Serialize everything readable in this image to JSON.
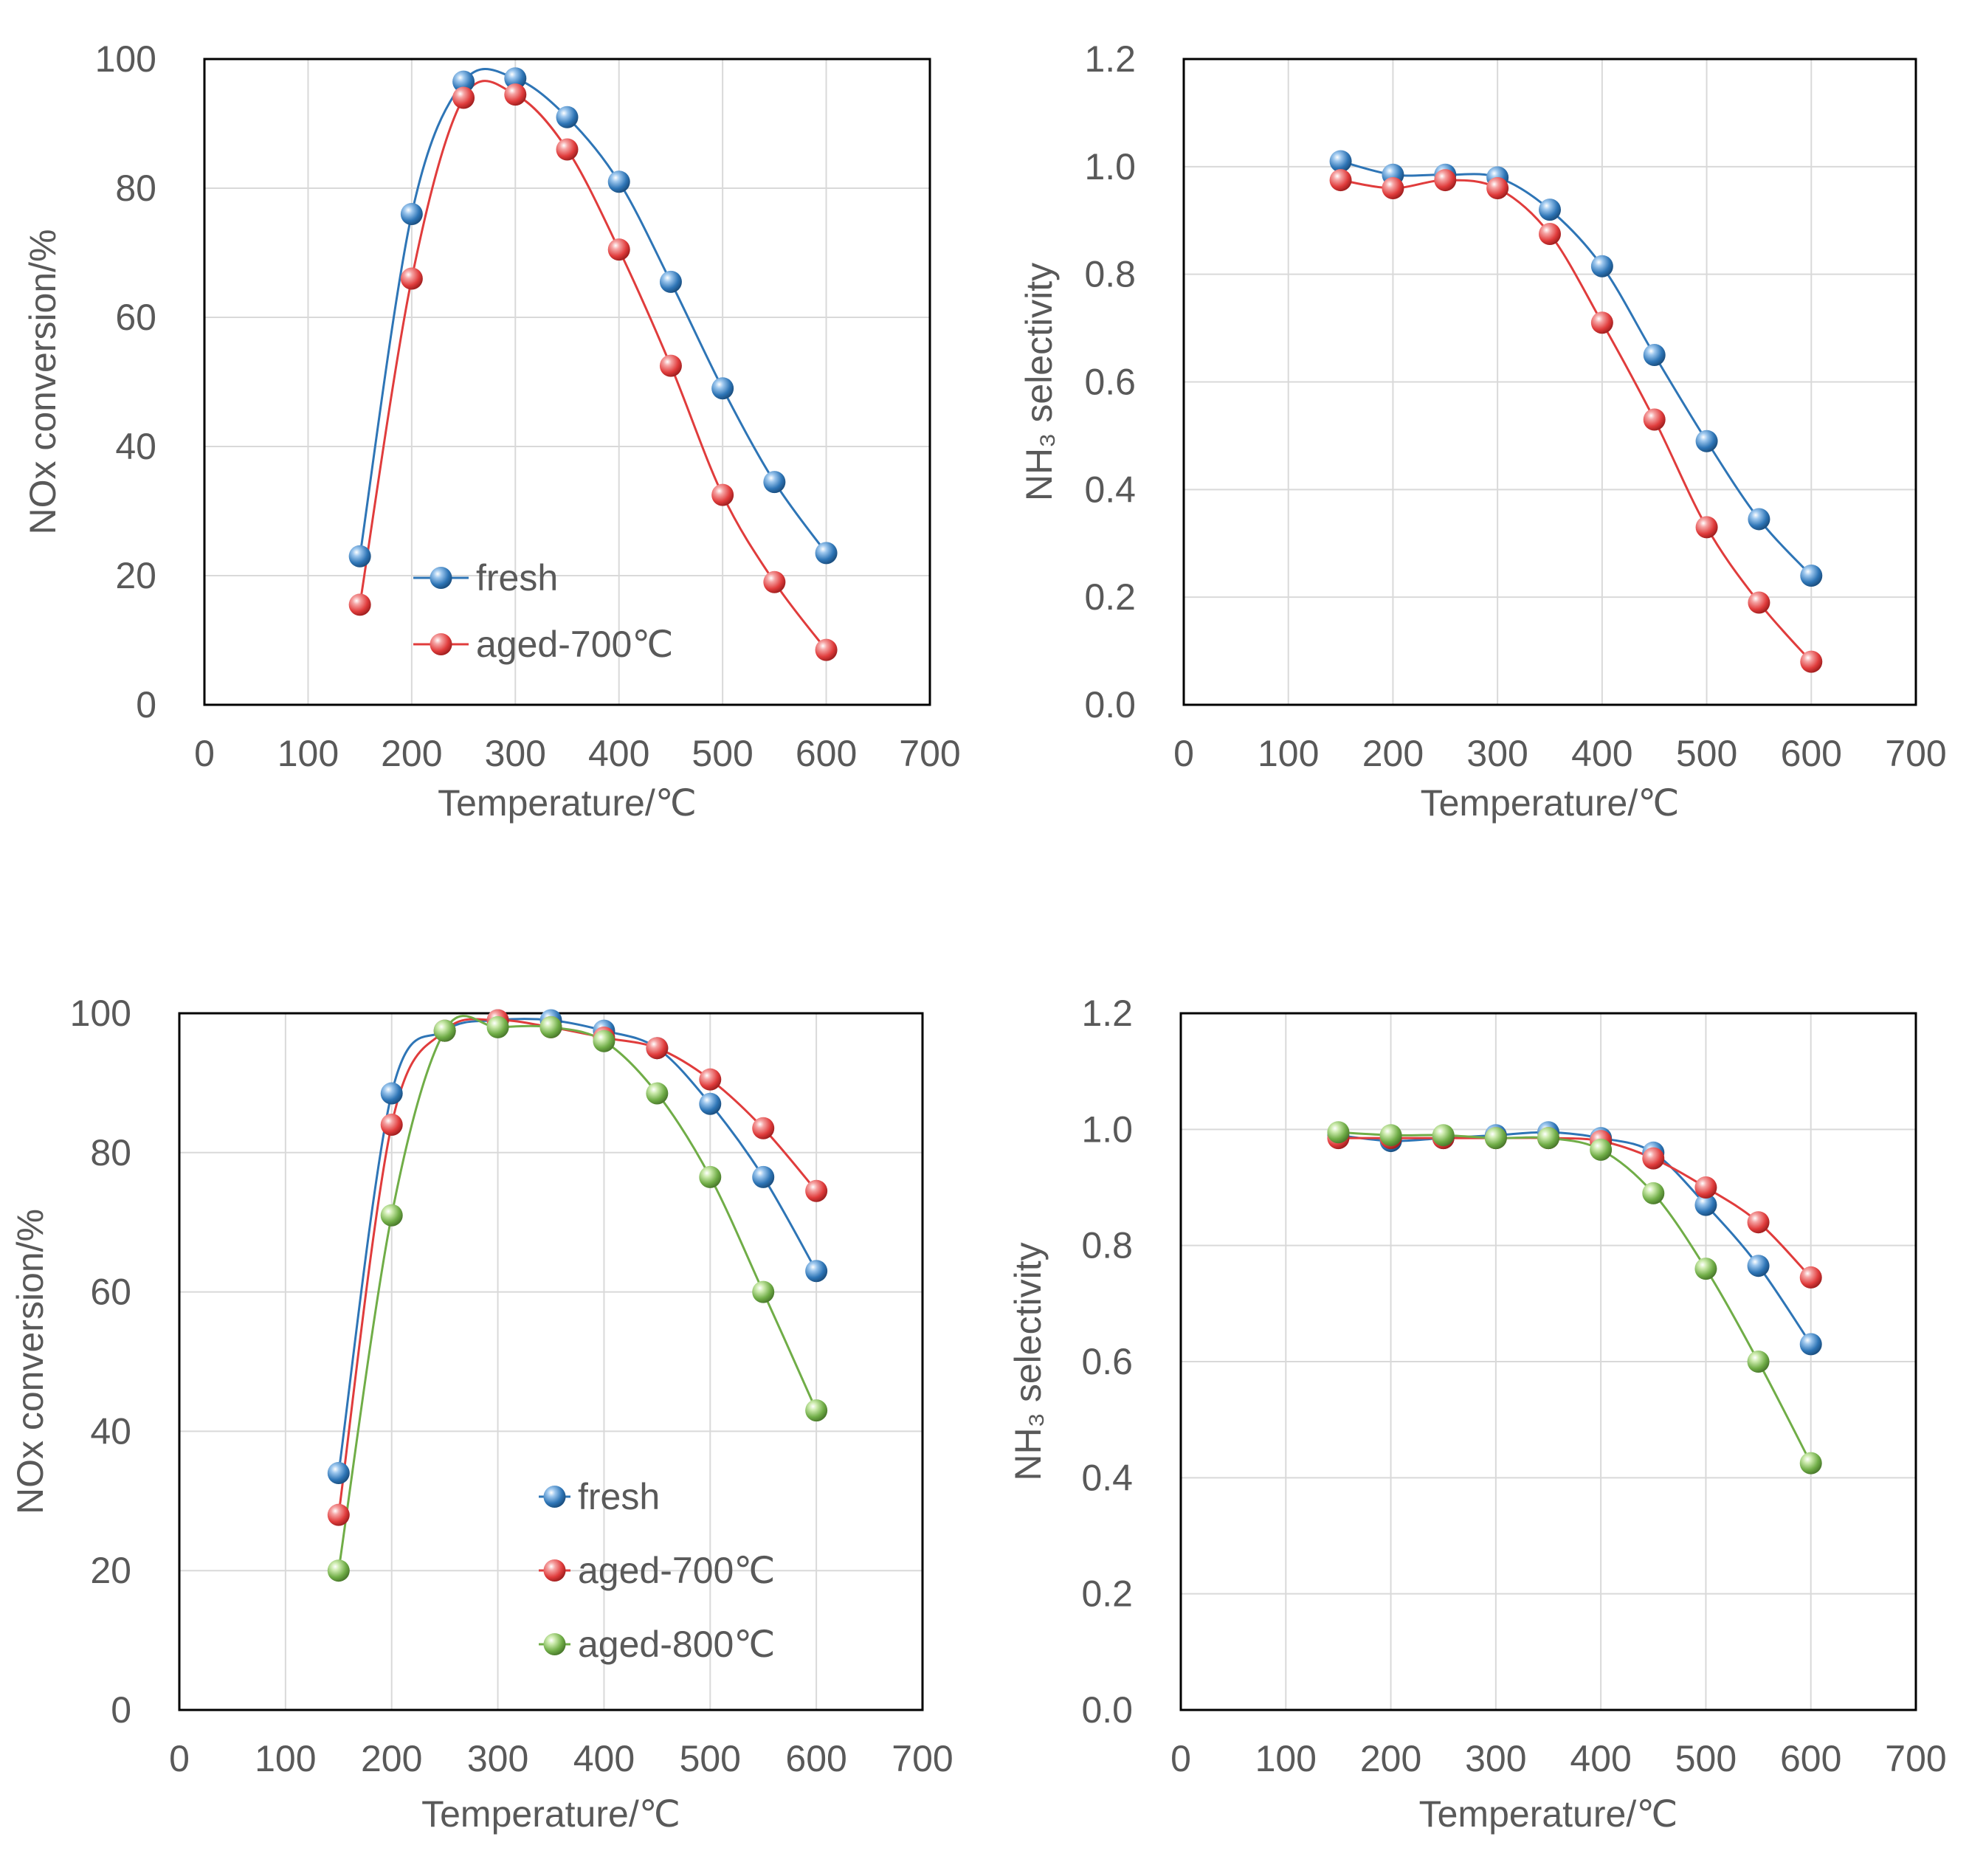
{
  "colors": {
    "fresh": "#2E75B6",
    "aged_700": "#E03C3C",
    "aged_800": "#70AD47",
    "grid": "#D9D9D9",
    "frame": "#000000",
    "text": "#595959"
  },
  "chart_data": [
    {
      "id": "a",
      "type": "line",
      "title": "",
      "xlabel": "Temperature/℃",
      "ylabel": "NOx conversion/%",
      "xlim": [
        0,
        700
      ],
      "ylim": [
        0,
        100
      ],
      "x_ticks": [
        0,
        100,
        200,
        300,
        400,
        500,
        600,
        700
      ],
      "y_ticks": [
        0,
        20,
        40,
        60,
        80,
        100
      ],
      "x_tick_labels": [
        "0",
        "100",
        "200",
        "300",
        "400",
        "500",
        "600",
        "700"
      ],
      "y_tick_labels": [
        "0",
        "20",
        "40",
        "60",
        "80",
        "100"
      ],
      "grid": true,
      "legend": "center-left",
      "x": [
        150,
        200,
        250,
        300,
        350,
        400,
        450,
        500,
        550,
        600
      ],
      "series": [
        {
          "name": "fresh",
          "color_key": "fresh",
          "values": [
            23,
            76,
            96.5,
            97,
            91,
            81,
            65.5,
            49,
            34.5,
            23.5
          ]
        },
        {
          "name": "aged-700℃",
          "color_key": "aged_700",
          "values": [
            15.5,
            66,
            94,
            94.5,
            86,
            70.5,
            52.5,
            32.5,
            19,
            8.5
          ]
        }
      ]
    },
    {
      "id": "b",
      "type": "line",
      "title": "",
      "xlabel": "Temperature/℃",
      "ylabel": "NH₃ selectivity",
      "xlim": [
        0,
        700
      ],
      "ylim": [
        0,
        1.2
      ],
      "x_ticks": [
        0,
        100,
        200,
        300,
        400,
        500,
        600,
        700
      ],
      "y_ticks": [
        0,
        0.2,
        0.4,
        0.6,
        0.8,
        1.0,
        1.2
      ],
      "x_tick_labels": [
        "0",
        "100",
        "200",
        "300",
        "400",
        "500",
        "600",
        "700"
      ],
      "y_tick_labels": [
        "0.0",
        "0.2",
        "0.4",
        "0.6",
        "0.8",
        "1.0",
        "1.2"
      ],
      "grid": true,
      "legend": "none",
      "x": [
        150,
        200,
        250,
        300,
        350,
        400,
        450,
        500,
        550,
        600
      ],
      "series": [
        {
          "name": "fresh",
          "color_key": "fresh",
          "values": [
            1.01,
            0.985,
            0.985,
            0.98,
            0.92,
            0.815,
            0.65,
            0.49,
            0.345,
            0.24
          ]
        },
        {
          "name": "aged-700℃",
          "color_key": "aged_700",
          "values": [
            0.975,
            0.96,
            0.975,
            0.96,
            0.875,
            0.71,
            0.53,
            0.33,
            0.19,
            0.08
          ]
        }
      ]
    },
    {
      "id": "c",
      "type": "line",
      "title": "",
      "xlabel": "Temperature/℃",
      "ylabel": "NOx conversion/%",
      "xlim": [
        0,
        700
      ],
      "ylim": [
        0,
        100
      ],
      "x_ticks": [
        0,
        100,
        200,
        300,
        400,
        500,
        600,
        700
      ],
      "y_ticks": [
        0,
        20,
        40,
        60,
        80,
        100
      ],
      "x_tick_labels": [
        "0",
        "100",
        "200",
        "300",
        "400",
        "500",
        "600",
        "700"
      ],
      "y_tick_labels": [
        "0",
        "20",
        "40",
        "60",
        "80",
        "100"
      ],
      "grid": true,
      "legend": "lower-center",
      "x": [
        150,
        200,
        250,
        300,
        350,
        400,
        450,
        500,
        550,
        600
      ],
      "series": [
        {
          "name": "fresh",
          "color_key": "fresh",
          "values": [
            34,
            88.5,
            97.5,
            99,
            99,
            97.5,
            95,
            87,
            76.5,
            63
          ]
        },
        {
          "name": "aged-700℃",
          "color_key": "aged_700",
          "values": [
            28,
            84,
            97.5,
            99,
            98,
            96.5,
            95,
            90.5,
            83.5,
            74.5
          ]
        },
        {
          "name": "aged-800℃",
          "color_key": "aged_800",
          "values": [
            20,
            71,
            97.5,
            98,
            98,
            96,
            88.5,
            76.5,
            60,
            43
          ]
        }
      ]
    },
    {
      "id": "d",
      "type": "line",
      "title": "",
      "xlabel": "Temperature/℃",
      "ylabel": "NH₃ selectivity",
      "xlim": [
        0,
        700
      ],
      "ylim": [
        0,
        1.2
      ],
      "x_ticks": [
        0,
        100,
        200,
        300,
        400,
        500,
        600,
        700
      ],
      "y_ticks": [
        0,
        0.2,
        0.4,
        0.6,
        0.8,
        1.0,
        1.2
      ],
      "x_tick_labels": [
        "0",
        "100",
        "200",
        "300",
        "400",
        "500",
        "600",
        "700"
      ],
      "y_tick_labels": [
        "0.0",
        "0.2",
        "0.4",
        "0.6",
        "0.8",
        "1.0",
        "1.2"
      ],
      "grid": true,
      "legend": "none",
      "x": [
        150,
        200,
        250,
        300,
        350,
        400,
        450,
        500,
        550,
        600
      ],
      "series": [
        {
          "name": "fresh",
          "color_key": "fresh",
          "values": [
            0.99,
            0.98,
            0.985,
            0.99,
            0.995,
            0.985,
            0.96,
            0.87,
            0.765,
            0.63
          ]
        },
        {
          "name": "aged-700℃",
          "color_key": "aged_700",
          "values": [
            0.985,
            0.985,
            0.985,
            0.985,
            0.985,
            0.98,
            0.95,
            0.9,
            0.84,
            0.745
          ]
        },
        {
          "name": "aged-800℃",
          "color_key": "aged_800",
          "values": [
            0.995,
            0.99,
            0.99,
            0.985,
            0.985,
            0.965,
            0.89,
            0.76,
            0.6,
            0.425
          ]
        }
      ]
    }
  ]
}
